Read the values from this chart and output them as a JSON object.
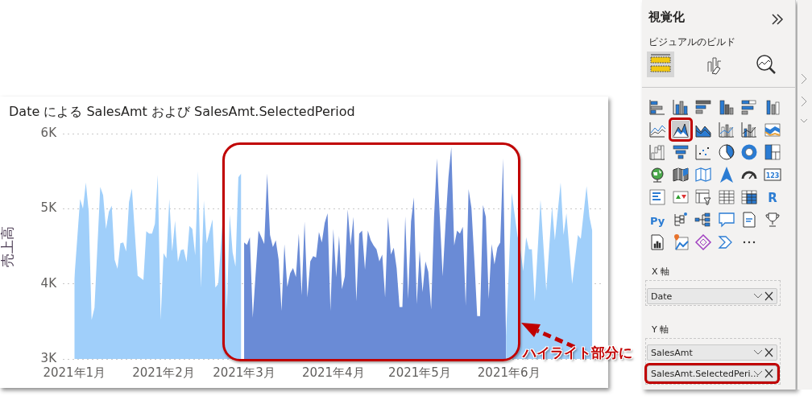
{
  "chart_data": {
    "type": "area",
    "title": "Date による SalesAmt および SalesAmt.SelectedPeriod",
    "ylabel": "売上高",
    "xlim": [
      "2020-12-28",
      "2021-07-03"
    ],
    "xticks": [
      {
        "value": "2021-01-01",
        "label": "2021年1月"
      },
      {
        "value": "2021-02-01",
        "label": "2021年2月"
      },
      {
        "value": "2021-03-01",
        "label": "2021年3月"
      },
      {
        "value": "2021-04-01",
        "label": "2021年4月"
      },
      {
        "value": "2021-05-01",
        "label": "2021年5月"
      },
      {
        "value": "2021-06-01",
        "label": "2021年6月"
      }
    ],
    "ylim": [
      3000,
      6000
    ],
    "yticks": [
      {
        "value": 3000,
        "label": "3K"
      },
      {
        "value": 4000,
        "label": "4K"
      },
      {
        "value": 5000,
        "label": "5K"
      },
      {
        "value": 6000,
        "label": "6K"
      }
    ],
    "grid": "y",
    "legend": false,
    "series": [
      {
        "color": "#a0cffa",
        "x": [
          "2021-01-01",
          "2021-01-03",
          "2021-01-04",
          "2021-01-05",
          "2021-01-06",
          "2021-01-07",
          "2021-01-08",
          "2021-01-10",
          "2021-01-11",
          "2021-01-12",
          "2021-01-13",
          "2021-01-14",
          "2021-01-15",
          "2021-01-16",
          "2021-01-17",
          "2021-01-18",
          "2021-01-19",
          "2021-01-20",
          "2021-01-21",
          "2021-01-23",
          "2021-01-25",
          "2021-01-26",
          "2021-01-27",
          "2021-01-28",
          "2021-01-29",
          "2021-01-30",
          "2021-01-31",
          "2021-02-01",
          "2021-02-02",
          "2021-02-03",
          "2021-02-04",
          "2021-02-05",
          "2021-02-06",
          "2021-02-07",
          "2021-02-08",
          "2021-02-09",
          "2021-02-10",
          "2021-02-11",
          "2021-02-12",
          "2021-02-13",
          "2021-02-14",
          "2021-02-15",
          "2021-02-16",
          "2021-02-17",
          "2021-02-18",
          "2021-02-19",
          "2021-02-20",
          "2021-02-22",
          "2021-02-23",
          "2021-02-24",
          "2021-02-25",
          "2021-02-26",
          "2021-02-27",
          "2021-02-28"
        ],
        "values": [
          4070,
          5130,
          5000,
          5350,
          4960,
          3520,
          3680,
          5290,
          5180,
          4730,
          4960,
          5040,
          4320,
          4200,
          4540,
          4550,
          4430,
          5090,
          5270,
          4110,
          4050,
          4700,
          4670,
          4670,
          4800,
          5450,
          3520,
          4410,
          4340,
          5130,
          4430,
          4840,
          4290,
          4450,
          4460,
          4290,
          4770,
          4730,
          4380,
          5500,
          3950,
          5110,
          4540,
          4700,
          4860,
          3950,
          4000,
          5090,
          3640,
          4920,
          4420,
          4230,
          5420,
          5470
        ]
      },
      {
        "color": "#6a8bd6",
        "x": [
          "2021-03-01",
          "2021-03-02",
          "2021-03-03",
          "2021-03-04",
          "2021-03-06",
          "2021-03-07",
          "2021-03-08",
          "2021-03-09",
          "2021-03-10",
          "2021-03-11",
          "2021-03-12",
          "2021-03-13",
          "2021-03-14",
          "2021-03-15",
          "2021-03-16",
          "2021-03-17",
          "2021-03-18",
          "2021-03-19",
          "2021-03-20",
          "2021-03-21",
          "2021-03-22",
          "2021-03-23",
          "2021-03-24",
          "2021-03-25",
          "2021-03-26",
          "2021-03-27",
          "2021-03-28",
          "2021-03-29",
          "2021-03-30",
          "2021-03-31",
          "2021-04-01",
          "2021-04-02",
          "2021-04-03",
          "2021-04-04",
          "2021-04-05",
          "2021-04-06",
          "2021-04-07",
          "2021-04-08",
          "2021-04-09",
          "2021-04-10",
          "2021-04-11",
          "2021-04-12",
          "2021-04-13",
          "2021-04-14",
          "2021-04-15",
          "2021-04-16",
          "2021-04-17",
          "2021-04-18",
          "2021-04-19",
          "2021-04-20",
          "2021-04-21",
          "2021-04-22",
          "2021-04-23",
          "2021-04-24",
          "2021-04-25",
          "2021-04-26",
          "2021-04-27",
          "2021-04-28",
          "2021-04-29",
          "2021-04-30",
          "2021-05-01",
          "2021-05-02",
          "2021-05-03",
          "2021-05-04",
          "2021-05-05",
          "2021-05-06",
          "2021-05-07",
          "2021-05-08",
          "2021-05-09",
          "2021-05-10",
          "2021-05-11",
          "2021-05-12",
          "2021-05-13",
          "2021-05-14",
          "2021-05-15",
          "2021-05-16",
          "2021-05-17",
          "2021-05-18",
          "2021-05-19",
          "2021-05-20",
          "2021-05-21",
          "2021-05-22",
          "2021-05-23",
          "2021-05-24",
          "2021-05-25",
          "2021-05-26",
          "2021-05-27",
          "2021-05-28",
          "2021-05-29",
          "2021-05-30",
          "2021-05-31"
        ],
        "values": [
          4550,
          4520,
          4620,
          3550,
          4710,
          4620,
          4530,
          5470,
          4650,
          4490,
          4580,
          4320,
          3640,
          4530,
          3960,
          4140,
          4210,
          4090,
          4670,
          3850,
          4830,
          3820,
          4300,
          4370,
          4350,
          4690,
          4550,
          4810,
          4940,
          3640,
          4730,
          4090,
          4640,
          3930,
          4100,
          4990,
          4510,
          4890,
          3770,
          4670,
          4710,
          4190,
          4710,
          4580,
          4510,
          4460,
          4300,
          4390,
          3820,
          4890,
          4390,
          4480,
          4210,
          3690,
          3690,
          4900,
          3800,
          4830,
          5150,
          3730,
          4440,
          3890,
          4300,
          4160,
          3660,
          4890,
          5670,
          4890,
          4100,
          4800,
          5420,
          5820,
          4510,
          4710,
          4670,
          4760,
          3710,
          5260,
          5010,
          4320,
          3570,
          3570,
          5050,
          4890,
          3800,
          4530,
          4260,
          4480,
          4550,
          5670,
          3300
        ]
      },
      {
        "color": "#a0cffa",
        "x": [
          "2021-05-31",
          "2021-06-01",
          "2021-06-02",
          "2021-06-04",
          "2021-06-05",
          "2021-06-06",
          "2021-06-07",
          "2021-06-08",
          "2021-06-09",
          "2021-06-10",
          "2021-06-12",
          "2021-06-14",
          "2021-06-16",
          "2021-06-17",
          "2021-06-19",
          "2021-06-20",
          "2021-06-21",
          "2021-06-23",
          "2021-06-25",
          "2021-06-26",
          "2021-06-28",
          "2021-06-29",
          "2021-06-30"
        ],
        "values": [
          3300,
          4200,
          5210,
          4640,
          4460,
          4170,
          4620,
          4460,
          4460,
          3770,
          5120,
          3910,
          5030,
          4580,
          5350,
          4650,
          4940,
          4000,
          4650,
          4600,
          5300,
          4890,
          4700
        ]
      }
    ],
    "annotations": [
      "ハイライト部分に",
      "視覚化",
      "ビジュアルのビルド",
      "X 軸",
      "Date",
      "Y 軸",
      "SalesAmt",
      "SalesAmt.SelectedPeri...",
      "R",
      "Py",
      "123"
    ]
  }
}
